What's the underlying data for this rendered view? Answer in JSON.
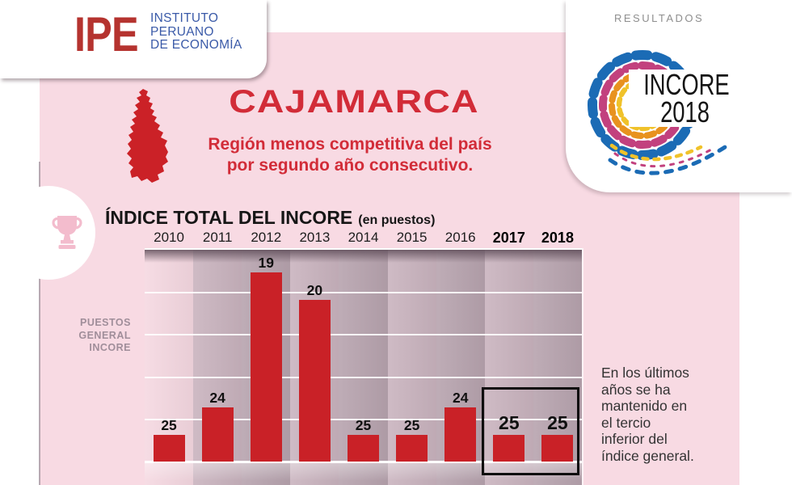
{
  "header": {
    "logo_abbr": "IPE",
    "logo_lines": [
      "INSTITUTO",
      "PERUANO",
      "DE ECONOMÍA"
    ],
    "results_label": "RESULTADOS",
    "incore_logo_line1": "INCORE",
    "incore_logo_line2": "2018"
  },
  "hero": {
    "region": "CAJAMARCA",
    "subtitle_line1": "Región menos competitiva del país",
    "subtitle_line2": "por segundo año consecutivo."
  },
  "chart": {
    "title": "ÍNDICE TOTAL DEL INCORE",
    "title_suffix": "(en puestos)",
    "y_axis_lines": [
      "PUESTOS",
      "GENERAL",
      "INCORE"
    ]
  },
  "chart_data": {
    "type": "bar",
    "title": "ÍNDICE TOTAL DEL INCORE",
    "subtitle": "(en puestos)",
    "categories": [
      "2010",
      "2011",
      "2012",
      "2013",
      "2014",
      "2015",
      "2016",
      "2017",
      "2018"
    ],
    "values": [
      25,
      24,
      19,
      20,
      25,
      25,
      24,
      25,
      25
    ],
    "highlight_categories": [
      "2017",
      "2018"
    ],
    "ylabel": "PUESTOS GENERAL INCORE",
    "xlabel": "",
    "value_meaning": "puesto (rank, lower is better); bar height proportional to 26 - value",
    "ylim_rank": [
      26,
      18
    ],
    "grid": "horizontal white gridlines",
    "legend": "none"
  },
  "annotation": {
    "lines": [
      "En los últimos",
      "años se ha",
      "mantenido en",
      "el tercio",
      "inferior del",
      "índice general."
    ]
  },
  "colors": {
    "bar": "#c92127",
    "accent_red": "#d22c38",
    "ipe_red": "#b5332f",
    "ipe_blue": "#3a5aa8",
    "panel_pink": "#f8dae3",
    "stripe_first": "#f5d8e1",
    "stripe_light": "#c9b3be",
    "stripe_dark": "#b7a3ae",
    "spiral_blue": "#1b6bb5",
    "spiral_magenta": "#c2417e",
    "spiral_orange": "#e8921f",
    "spiral_yellow": "#f0c22a"
  }
}
